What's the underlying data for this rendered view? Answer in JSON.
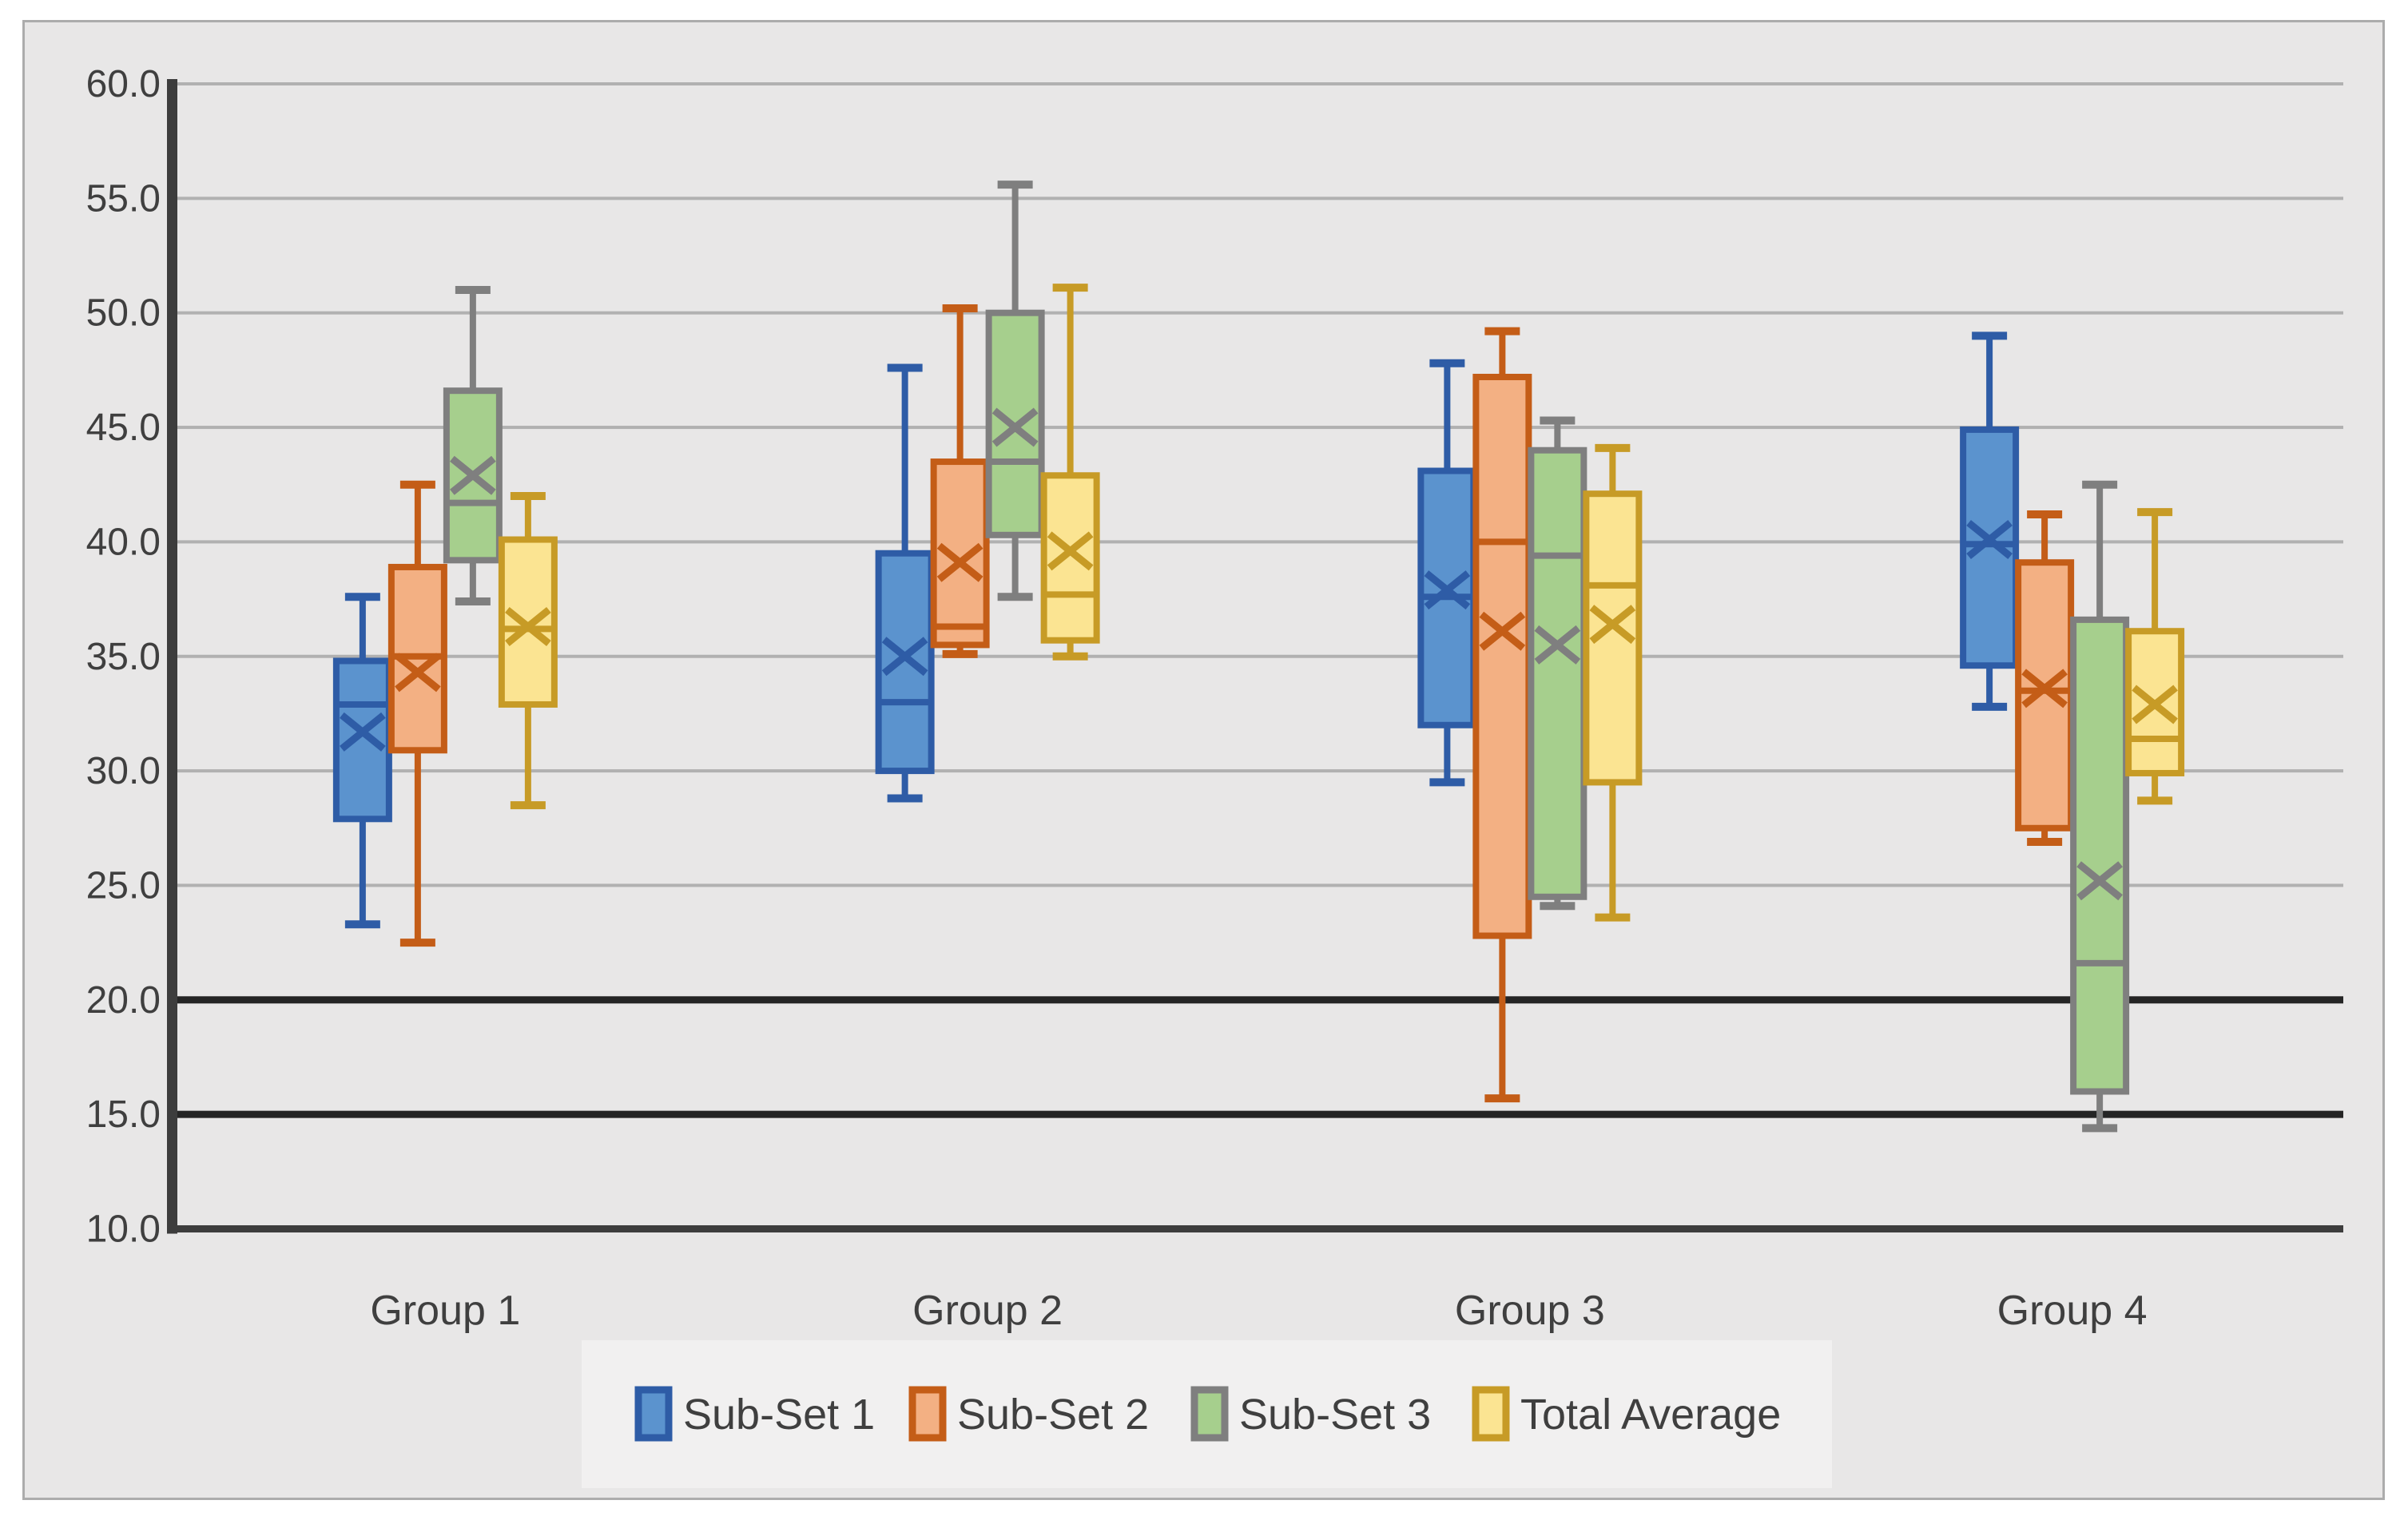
{
  "chart_data": {
    "type": "boxplot",
    "title": "",
    "categories": [
      "Group 1",
      "Group 2",
      "Group 3",
      "Group 4"
    ],
    "y_axis": {
      "min": 10.0,
      "max": 60.0,
      "step": 5.0,
      "tick_labels": [
        "60.0",
        "55.0",
        "50.0",
        "45.0",
        "40.0",
        "35.0",
        "30.0",
        "25.0",
        "20.0",
        "15.0",
        "10.0"
      ],
      "dark_gridline_values": [
        20.0,
        15.0
      ],
      "gridline_color": "#b1b1b1",
      "dark_gridline_color": "#252525",
      "axis_color": "#3d3d3d",
      "text_color": "#3f3f3f"
    },
    "legend": {
      "position": "bottom",
      "background": "#f1f0f0",
      "entries": [
        "Sub-Set 1",
        "Sub-Set 2",
        "Sub-Set 3",
        "Total Average"
      ]
    },
    "series": [
      {
        "name": "Sub-Set 1",
        "fill": "#5b93ce",
        "stroke": "#2e5ca6",
        "boxes": [
          {
            "category": "Group 1",
            "whisker_low": 23.3,
            "q1": 27.9,
            "median": 32.9,
            "q3": 34.8,
            "whisker_high": 37.6,
            "mean": 31.7
          },
          {
            "category": "Group 2",
            "whisker_low": 28.8,
            "q1": 30.0,
            "median": 33.0,
            "q3": 39.5,
            "whisker_high": 47.6,
            "mean": 35.0
          },
          {
            "category": "Group 3",
            "whisker_low": 29.5,
            "q1": 32.0,
            "median": 37.6,
            "q3": 43.1,
            "whisker_high": 47.8,
            "mean": 37.9
          },
          {
            "category": "Group 4",
            "whisker_low": 32.8,
            "q1": 34.6,
            "median": 39.9,
            "q3": 44.9,
            "whisker_high": 49.0,
            "mean": 40.1
          }
        ]
      },
      {
        "name": "Sub-Set 2",
        "fill": "#f3b083",
        "stroke": "#c45d17",
        "boxes": [
          {
            "category": "Group 1",
            "whisker_low": 22.5,
            "q1": 30.9,
            "median": 35.0,
            "q3": 38.9,
            "whisker_high": 42.5,
            "mean": 34.3
          },
          {
            "category": "Group 2",
            "whisker_low": 35.1,
            "q1": 35.5,
            "median": 36.3,
            "q3": 43.5,
            "whisker_high": 50.2,
            "mean": 39.1
          },
          {
            "category": "Group 3",
            "whisker_low": 15.7,
            "q1": 22.8,
            "median": 40.0,
            "q3": 47.2,
            "whisker_high": 49.2,
            "mean": 36.1
          },
          {
            "category": "Group 4",
            "whisker_low": 26.9,
            "q1": 27.5,
            "median": 33.5,
            "q3": 39.1,
            "whisker_high": 41.2,
            "mean": 33.6
          }
        ]
      },
      {
        "name": "Sub-Set 3",
        "fill": "#a6cf8d",
        "stroke": "#7f7f7f",
        "boxes": [
          {
            "category": "Group 1",
            "whisker_low": 37.4,
            "q1": 39.2,
            "median": 41.7,
            "q3": 46.6,
            "whisker_high": 51.0,
            "mean": 42.9
          },
          {
            "category": "Group 2",
            "whisker_low": 37.6,
            "q1": 40.3,
            "median": 43.5,
            "q3": 50.0,
            "whisker_high": 55.6,
            "mean": 45.0
          },
          {
            "category": "Group 3",
            "whisker_low": 24.1,
            "q1": 24.5,
            "median": 39.4,
            "q3": 44.0,
            "whisker_high": 45.3,
            "mean": 35.5
          },
          {
            "category": "Group 4",
            "whisker_low": 14.4,
            "q1": 16.0,
            "median": 21.6,
            "q3": 36.6,
            "whisker_high": 42.5,
            "mean": 25.2
          }
        ]
      },
      {
        "name": "Total Average",
        "fill": "#fbe492",
        "stroke": "#c79b26",
        "boxes": [
          {
            "category": "Group 1",
            "whisker_low": 28.5,
            "q1": 32.9,
            "median": 36.2,
            "q3": 40.1,
            "whisker_high": 42.0,
            "mean": 36.3
          },
          {
            "category": "Group 2",
            "whisker_low": 35.0,
            "q1": 35.7,
            "median": 37.7,
            "q3": 42.9,
            "whisker_high": 51.1,
            "mean": 39.6
          },
          {
            "category": "Group 3",
            "whisker_low": 23.6,
            "q1": 29.5,
            "median": 38.1,
            "q3": 42.1,
            "whisker_high": 44.1,
            "mean": 36.4
          },
          {
            "category": "Group 4",
            "whisker_low": 28.7,
            "q1": 29.9,
            "median": 31.4,
            "q3": 36.1,
            "whisker_high": 41.3,
            "mean": 32.9
          }
        ]
      }
    ],
    "style": {
      "plot_background": "#e8e7e7",
      "chart_border_color": "#acacac",
      "page_background": "#ffffff"
    }
  }
}
